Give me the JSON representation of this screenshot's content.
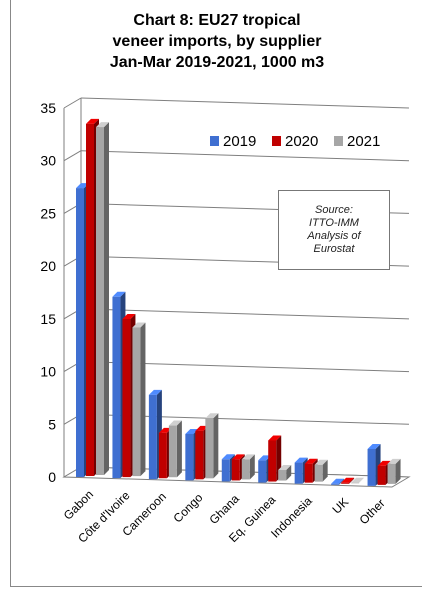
{
  "title_lines": [
    "Chart 8: EU27 tropical",
    "veneer imports, by supplier",
    "Jan-Mar 2019-2021, 1000 m3"
  ],
  "source_lines": [
    "Source:",
    "ITTO-IMM",
    "Analysis of",
    "Eurostat"
  ],
  "chart_data": {
    "type": "bar",
    "title": "Chart 8: EU27 tropical veneer imports, by supplier Jan-Mar 2019-2021, 1000 m3",
    "categories": [
      "Gabon",
      "Côte d'Ivoire",
      "Cameroon",
      "Congo",
      "Ghana",
      "Eq. Guinea",
      "Indonesia",
      "UK",
      "Other"
    ],
    "series": [
      {
        "name": "2019",
        "values": [
          27.4,
          17.2,
          8.0,
          4.4,
          2.1,
          2.1,
          2.0,
          0.1,
          3.5
        ],
        "color": "#3f6fd1"
      },
      {
        "name": "2020",
        "values": [
          33.4,
          15.0,
          4.3,
          4.6,
          2.0,
          3.9,
          1.8,
          0.1,
          1.8
        ],
        "color": "#c00000"
      },
      {
        "name": "2021",
        "values": [
          33.0,
          14.1,
          4.9,
          5.7,
          1.9,
          1.0,
          1.6,
          0.0,
          1.9
        ],
        "color": "#a6a6a6"
      }
    ],
    "yticks": [
      0,
      5,
      10,
      15,
      20,
      25,
      30,
      35
    ],
    "ylim": [
      0,
      35
    ],
    "grid": true,
    "legend": "top-right"
  }
}
